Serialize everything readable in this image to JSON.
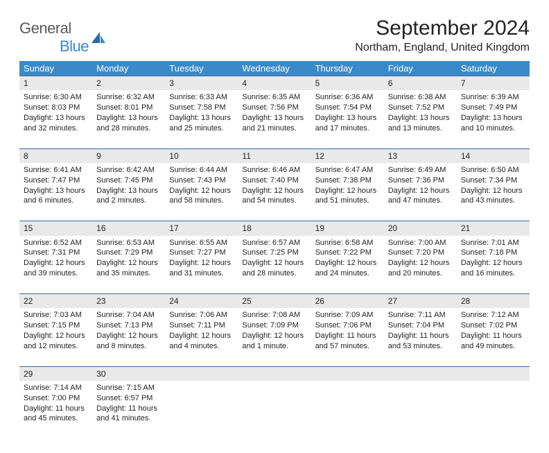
{
  "logo": {
    "text1": "General",
    "text2": "Blue"
  },
  "title": "September 2024",
  "location": "Northam, England, United Kingdom",
  "headers": [
    "Sunday",
    "Monday",
    "Tuesday",
    "Wednesday",
    "Thursday",
    "Friday",
    "Saturday"
  ],
  "colors": {
    "header_bg": "#3a8ac9",
    "header_fg": "#ffffff",
    "daynum_bg": "#e9e9e9",
    "row_border": "#3a6a9a",
    "logo_gray": "#5a5a5a",
    "logo_blue": "#3a8ac9",
    "text": "#222222",
    "bg": "#ffffff"
  },
  "weeks": [
    [
      {
        "n": "1",
        "sr": "Sunrise: 6:30 AM",
        "ss": "Sunset: 8:03 PM",
        "d1": "Daylight: 13 hours",
        "d2": "and 32 minutes."
      },
      {
        "n": "2",
        "sr": "Sunrise: 6:32 AM",
        "ss": "Sunset: 8:01 PM",
        "d1": "Daylight: 13 hours",
        "d2": "and 28 minutes."
      },
      {
        "n": "3",
        "sr": "Sunrise: 6:33 AM",
        "ss": "Sunset: 7:58 PM",
        "d1": "Daylight: 13 hours",
        "d2": "and 25 minutes."
      },
      {
        "n": "4",
        "sr": "Sunrise: 6:35 AM",
        "ss": "Sunset: 7:56 PM",
        "d1": "Daylight: 13 hours",
        "d2": "and 21 minutes."
      },
      {
        "n": "5",
        "sr": "Sunrise: 6:36 AM",
        "ss": "Sunset: 7:54 PM",
        "d1": "Daylight: 13 hours",
        "d2": "and 17 minutes."
      },
      {
        "n": "6",
        "sr": "Sunrise: 6:38 AM",
        "ss": "Sunset: 7:52 PM",
        "d1": "Daylight: 13 hours",
        "d2": "and 13 minutes."
      },
      {
        "n": "7",
        "sr": "Sunrise: 6:39 AM",
        "ss": "Sunset: 7:49 PM",
        "d1": "Daylight: 13 hours",
        "d2": "and 10 minutes."
      }
    ],
    [
      {
        "n": "8",
        "sr": "Sunrise: 6:41 AM",
        "ss": "Sunset: 7:47 PM",
        "d1": "Daylight: 13 hours",
        "d2": "and 6 minutes."
      },
      {
        "n": "9",
        "sr": "Sunrise: 6:42 AM",
        "ss": "Sunset: 7:45 PM",
        "d1": "Daylight: 13 hours",
        "d2": "and 2 minutes."
      },
      {
        "n": "10",
        "sr": "Sunrise: 6:44 AM",
        "ss": "Sunset: 7:43 PM",
        "d1": "Daylight: 12 hours",
        "d2": "and 58 minutes."
      },
      {
        "n": "11",
        "sr": "Sunrise: 6:46 AM",
        "ss": "Sunset: 7:40 PM",
        "d1": "Daylight: 12 hours",
        "d2": "and 54 minutes."
      },
      {
        "n": "12",
        "sr": "Sunrise: 6:47 AM",
        "ss": "Sunset: 7:38 PM",
        "d1": "Daylight: 12 hours",
        "d2": "and 51 minutes."
      },
      {
        "n": "13",
        "sr": "Sunrise: 6:49 AM",
        "ss": "Sunset: 7:36 PM",
        "d1": "Daylight: 12 hours",
        "d2": "and 47 minutes."
      },
      {
        "n": "14",
        "sr": "Sunrise: 6:50 AM",
        "ss": "Sunset: 7:34 PM",
        "d1": "Daylight: 12 hours",
        "d2": "and 43 minutes."
      }
    ],
    [
      {
        "n": "15",
        "sr": "Sunrise: 6:52 AM",
        "ss": "Sunset: 7:31 PM",
        "d1": "Daylight: 12 hours",
        "d2": "and 39 minutes."
      },
      {
        "n": "16",
        "sr": "Sunrise: 6:53 AM",
        "ss": "Sunset: 7:29 PM",
        "d1": "Daylight: 12 hours",
        "d2": "and 35 minutes."
      },
      {
        "n": "17",
        "sr": "Sunrise: 6:55 AM",
        "ss": "Sunset: 7:27 PM",
        "d1": "Daylight: 12 hours",
        "d2": "and 31 minutes."
      },
      {
        "n": "18",
        "sr": "Sunrise: 6:57 AM",
        "ss": "Sunset: 7:25 PM",
        "d1": "Daylight: 12 hours",
        "d2": "and 28 minutes."
      },
      {
        "n": "19",
        "sr": "Sunrise: 6:58 AM",
        "ss": "Sunset: 7:22 PM",
        "d1": "Daylight: 12 hours",
        "d2": "and 24 minutes."
      },
      {
        "n": "20",
        "sr": "Sunrise: 7:00 AM",
        "ss": "Sunset: 7:20 PM",
        "d1": "Daylight: 12 hours",
        "d2": "and 20 minutes."
      },
      {
        "n": "21",
        "sr": "Sunrise: 7:01 AM",
        "ss": "Sunset: 7:18 PM",
        "d1": "Daylight: 12 hours",
        "d2": "and 16 minutes."
      }
    ],
    [
      {
        "n": "22",
        "sr": "Sunrise: 7:03 AM",
        "ss": "Sunset: 7:15 PM",
        "d1": "Daylight: 12 hours",
        "d2": "and 12 minutes."
      },
      {
        "n": "23",
        "sr": "Sunrise: 7:04 AM",
        "ss": "Sunset: 7:13 PM",
        "d1": "Daylight: 12 hours",
        "d2": "and 8 minutes."
      },
      {
        "n": "24",
        "sr": "Sunrise: 7:06 AM",
        "ss": "Sunset: 7:11 PM",
        "d1": "Daylight: 12 hours",
        "d2": "and 4 minutes."
      },
      {
        "n": "25",
        "sr": "Sunrise: 7:08 AM",
        "ss": "Sunset: 7:09 PM",
        "d1": "Daylight: 12 hours",
        "d2": "and 1 minute."
      },
      {
        "n": "26",
        "sr": "Sunrise: 7:09 AM",
        "ss": "Sunset: 7:06 PM",
        "d1": "Daylight: 11 hours",
        "d2": "and 57 minutes."
      },
      {
        "n": "27",
        "sr": "Sunrise: 7:11 AM",
        "ss": "Sunset: 7:04 PM",
        "d1": "Daylight: 11 hours",
        "d2": "and 53 minutes."
      },
      {
        "n": "28",
        "sr": "Sunrise: 7:12 AM",
        "ss": "Sunset: 7:02 PM",
        "d1": "Daylight: 11 hours",
        "d2": "and 49 minutes."
      }
    ],
    [
      {
        "n": "29",
        "sr": "Sunrise: 7:14 AM",
        "ss": "Sunset: 7:00 PM",
        "d1": "Daylight: 11 hours",
        "d2": "and 45 minutes."
      },
      {
        "n": "30",
        "sr": "Sunrise: 7:15 AM",
        "ss": "Sunset: 6:57 PM",
        "d1": "Daylight: 11 hours",
        "d2": "and 41 minutes."
      },
      {
        "empty": true
      },
      {
        "empty": true
      },
      {
        "empty": true
      },
      {
        "empty": true
      },
      {
        "empty": true
      }
    ]
  ]
}
